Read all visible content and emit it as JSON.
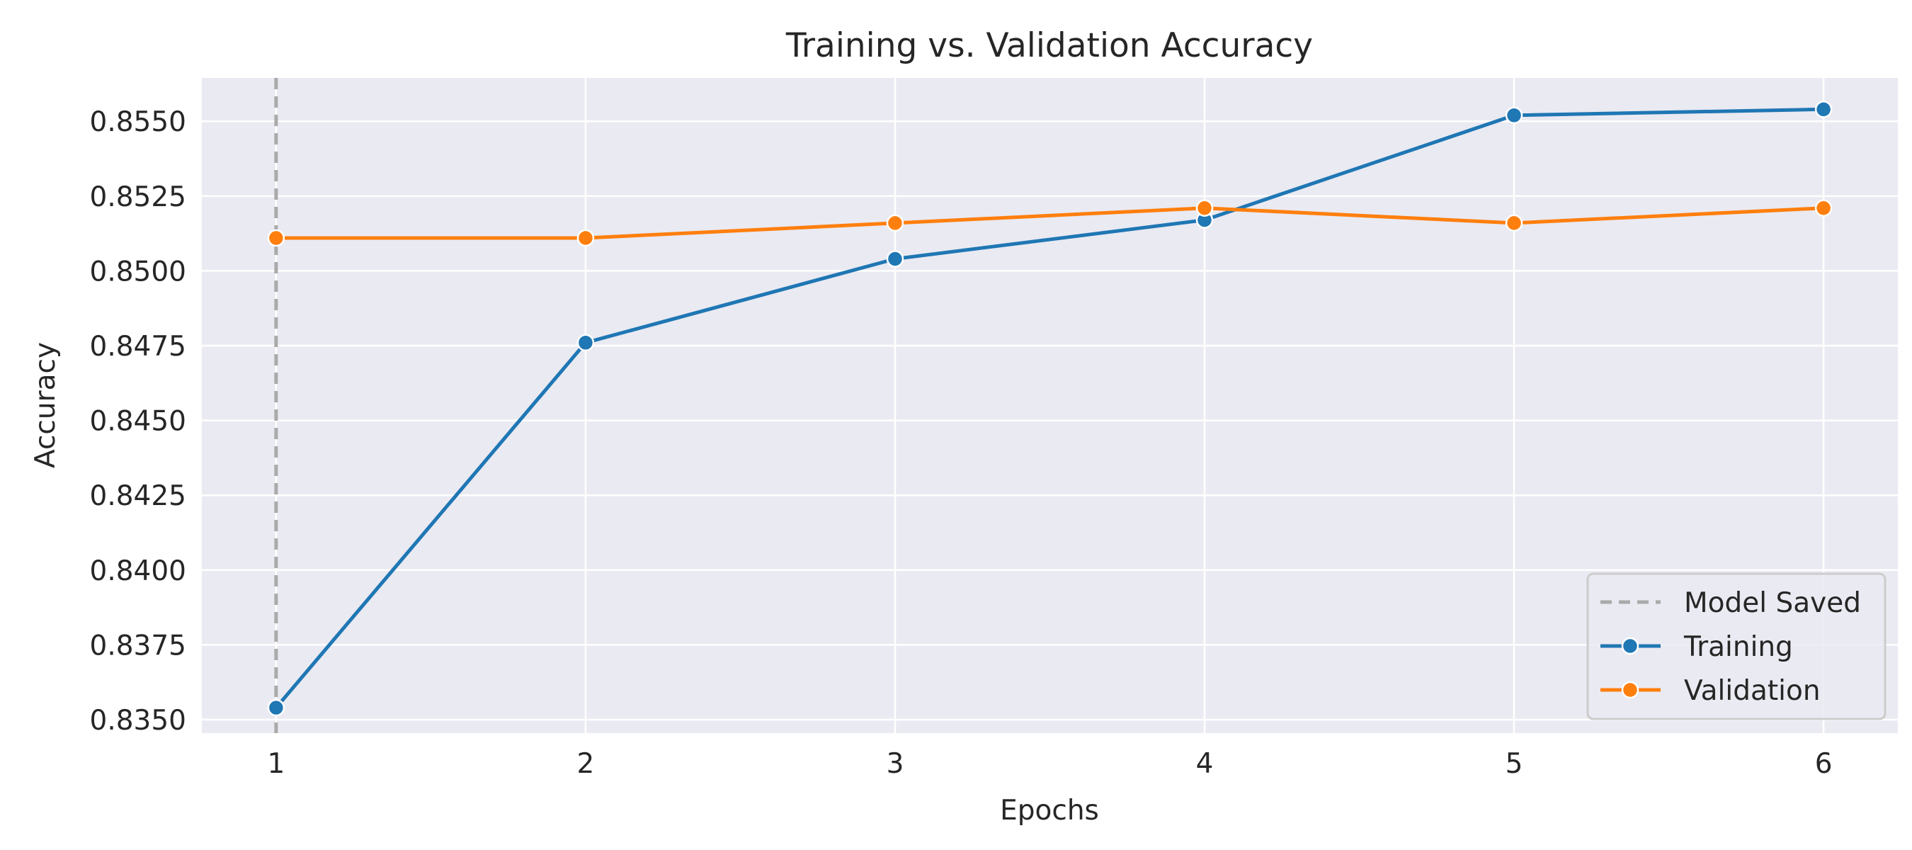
{
  "chart_data": {
    "type": "line",
    "title": "Training vs. Validation Accuracy",
    "xlabel": "Epochs",
    "ylabel": "Accuracy",
    "x": [
      1,
      2,
      3,
      4,
      5,
      6
    ],
    "xlim": [
      0.76,
      6.24
    ],
    "ylim": [
      0.83455,
      0.85645
    ],
    "x_ticks": [
      1,
      2,
      3,
      4,
      5,
      6
    ],
    "y_ticks": [
      "0.8350",
      "0.8375",
      "0.8400",
      "0.8425",
      "0.8450",
      "0.8475",
      "0.8500",
      "0.8525",
      "0.8550"
    ],
    "grid": true,
    "legend_position": "lower-right",
    "series": [
      {
        "name": "Training",
        "color": "#1f77b4",
        "marker": "circle",
        "values": [
          0.8354,
          0.8476,
          0.8504,
          0.8517,
          0.8552,
          0.8554
        ]
      },
      {
        "name": "Validation",
        "color": "#ff7f0e",
        "marker": "circle",
        "values": [
          0.8511,
          0.8511,
          0.8516,
          0.8521,
          0.8516,
          0.8521
        ]
      }
    ],
    "vline": {
      "name": "Model Saved",
      "x": 1,
      "color": "#aaaaaa",
      "style": "dashed"
    },
    "legend": [
      "Model Saved",
      "Training",
      "Validation"
    ]
  }
}
